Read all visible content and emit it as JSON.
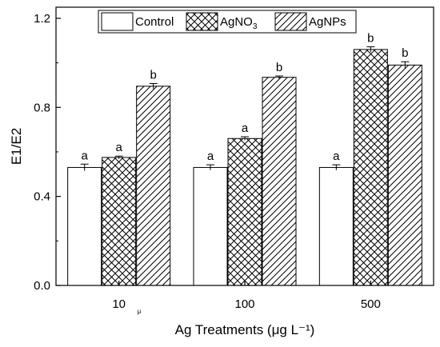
{
  "chart_data": {
    "type": "bar",
    "categories": [
      "10",
      "100",
      "500"
    ],
    "category_annotations": [
      "μ",
      "",
      ""
    ],
    "series": [
      {
        "name": "Control",
        "pattern": "none",
        "values": [
          0.53,
          0.53,
          0.53
        ],
        "errors": [
          0.015,
          0.012,
          0.012
        ],
        "significance": [
          "a",
          "a",
          "a"
        ]
      },
      {
        "name": "AgNO",
        "name_subscript": "3",
        "pattern": "crosshatch",
        "values": [
          0.575,
          0.66,
          1.06
        ],
        "errors": [
          0.006,
          0.008,
          0.012
        ],
        "significance": [
          "a",
          "a",
          "b"
        ]
      },
      {
        "name": "AgNPs",
        "pattern": "diagonal",
        "values": [
          0.895,
          0.935,
          0.99
        ],
        "errors": [
          0.012,
          0.006,
          0.015
        ],
        "significance": [
          "b",
          "b",
          "b"
        ]
      }
    ],
    "xlabel": "Ag Treatments (μg L⁻¹)",
    "ylabel": "E1/E2",
    "ylim": [
      0,
      1.25
    ],
    "yticks": [
      "0.0",
      "0.4",
      "0.8",
      "1.2"
    ],
    "yticks_values": [
      0,
      0.4,
      0.8,
      1.2
    ],
    "legend_position": "top",
    "grid": false,
    "colors": {
      "bar_fill": "#ffffff",
      "bar_stroke": "#000000",
      "hatch": "#000000"
    }
  }
}
